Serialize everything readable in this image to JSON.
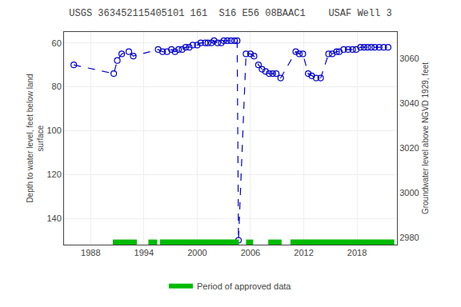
{
  "chart_data": {
    "type": "line",
    "title": "USGS 363452115405101 161  S16 E56 08BAAC1    USAF Well 3",
    "ylabel": "Depth to water level, feet below land\nsurface",
    "y2label": "Groundwater level above NGVD 1929, feet",
    "xlim": [
      1985.0,
      2022.5
    ],
    "xticks": [
      1988,
      1994,
      2000,
      2006,
      2012,
      2018
    ],
    "ylim": [
      152,
      55
    ],
    "yticks": [
      60,
      80,
      100,
      120,
      140
    ],
    "y2lim": [
      2977,
      3072
    ],
    "y2ticks": [
      2980,
      3000,
      3020,
      3040,
      3060
    ],
    "grid": true,
    "legend": "bottom",
    "x": [
      1986.1,
      1990.6,
      1991.0,
      1991.5,
      1992.3,
      1992.8,
      1995.6,
      1996.1,
      1996.6,
      1997.1,
      1997.5,
      1997.9,
      1998.3,
      1998.7,
      1999.1,
      1999.5,
      2000.0,
      2000.4,
      2000.9,
      2001.2,
      2001.6,
      2001.9,
      2002.3,
      2002.7,
      2003.0,
      2003.4,
      2003.8,
      2004.2,
      2004.5,
      2004.65,
      2005.5,
      2006.0,
      2006.4,
      2006.9,
      2007.3,
      2007.7,
      2008.1,
      2008.5,
      2008.9,
      2009.4,
      2011.1,
      2011.5,
      2011.9,
      2012.5,
      2012.9,
      2013.4,
      2013.9,
      2014.8,
      2015.2,
      2015.7,
      2016.0,
      2016.5,
      2017.0,
      2017.5,
      2017.9,
      2018.4,
      2018.8,
      2019.2,
      2019.6,
      2020.0,
      2020.5,
      2021.0,
      2021.5
    ],
    "series": [
      {
        "color": "#0000cc",
        "marker": "circle",
        "line_style": "dashed",
        "values": [
          70,
          74,
          68,
          65,
          64,
          66,
          63,
          64,
          64,
          63,
          64,
          63,
          63,
          62,
          62,
          61,
          61,
          60,
          60,
          60,
          60,
          59,
          60,
          60,
          59,
          59,
          59,
          59,
          59,
          150,
          65,
          65,
          66,
          70,
          72,
          73,
          74,
          74,
          74,
          76,
          64,
          65,
          65,
          74,
          75,
          76,
          76,
          65,
          65,
          64,
          64,
          63,
          63,
          63,
          63,
          62,
          62,
          62,
          62,
          62,
          62,
          62,
          62
        ]
      }
    ],
    "approved_periods": {
      "name": "Period of approved data",
      "color": "#00bb00",
      "segments": [
        [
          1990.5,
          1993.2
        ],
        [
          1994.5,
          1995.5
        ],
        [
          1995.8,
          2004.7
        ],
        [
          2005.5,
          2006.3
        ],
        [
          2008.0,
          2009.5
        ],
        [
          2010.5,
          2022.2
        ]
      ]
    }
  }
}
